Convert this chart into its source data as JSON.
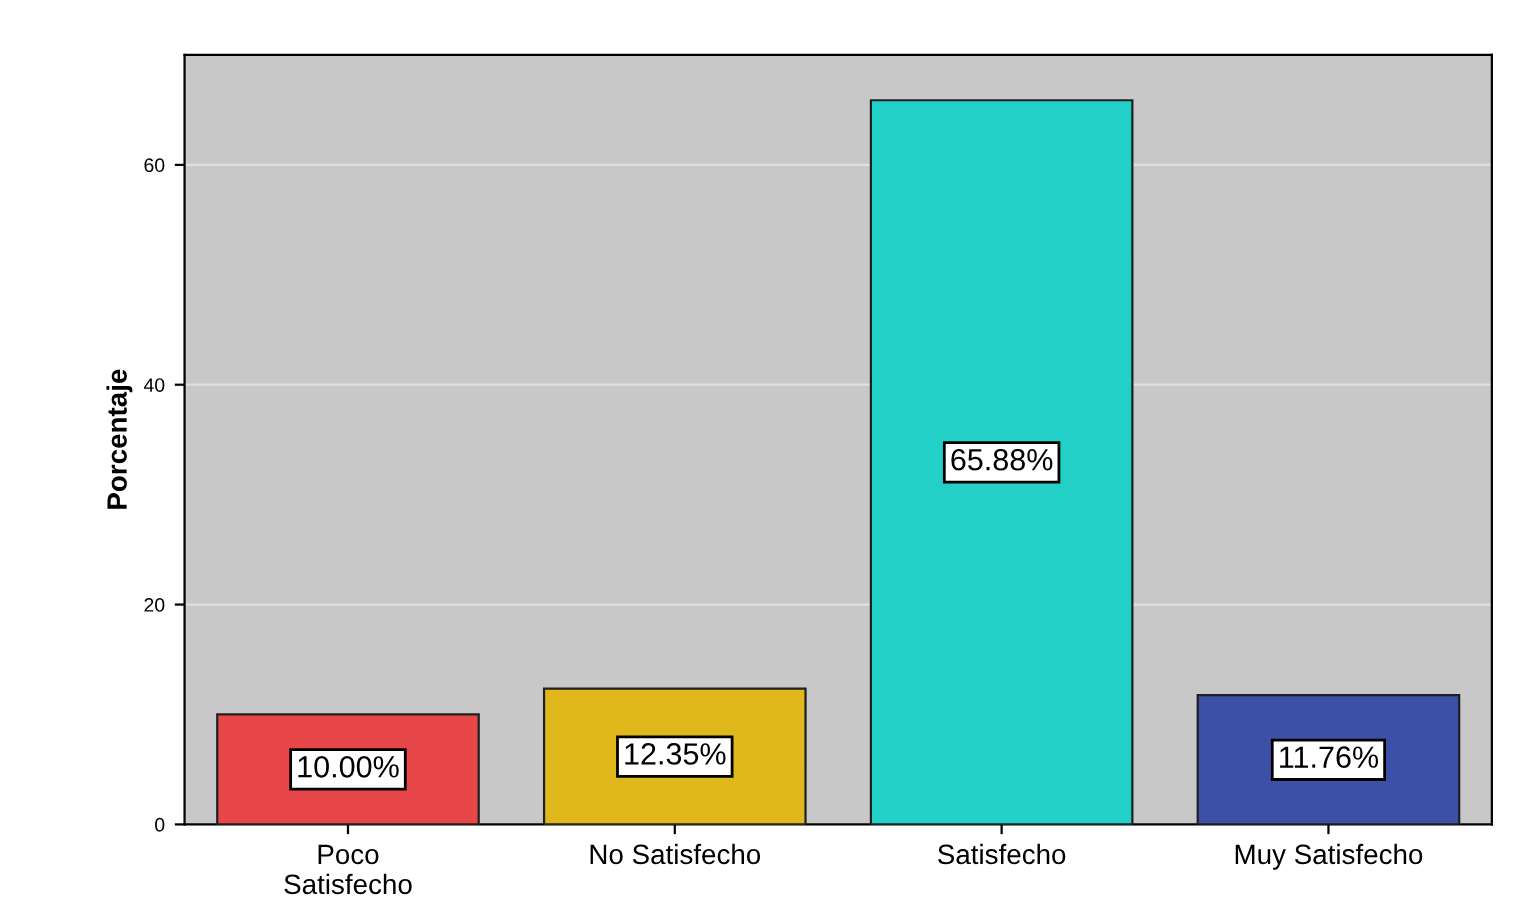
{
  "chart_data": {
    "type": "bar",
    "ylabel": "Porcentaje",
    "categories": [
      "Poco\nSatisfecho",
      "No Satisfecho",
      "Satisfecho",
      "Muy Satisfecho"
    ],
    "values": [
      10.0,
      12.35,
      65.88,
      11.76
    ],
    "colors": [
      "#e8474a",
      "#e0b81c",
      "#22d0c8",
      "#3c50a8"
    ],
    "value_labels": [
      "10.00%",
      "12.35%",
      "65.88%",
      "11.76%"
    ],
    "ylim": [
      0,
      70
    ],
    "yticks": [
      0,
      20,
      40,
      60
    ],
    "grid": "y"
  }
}
